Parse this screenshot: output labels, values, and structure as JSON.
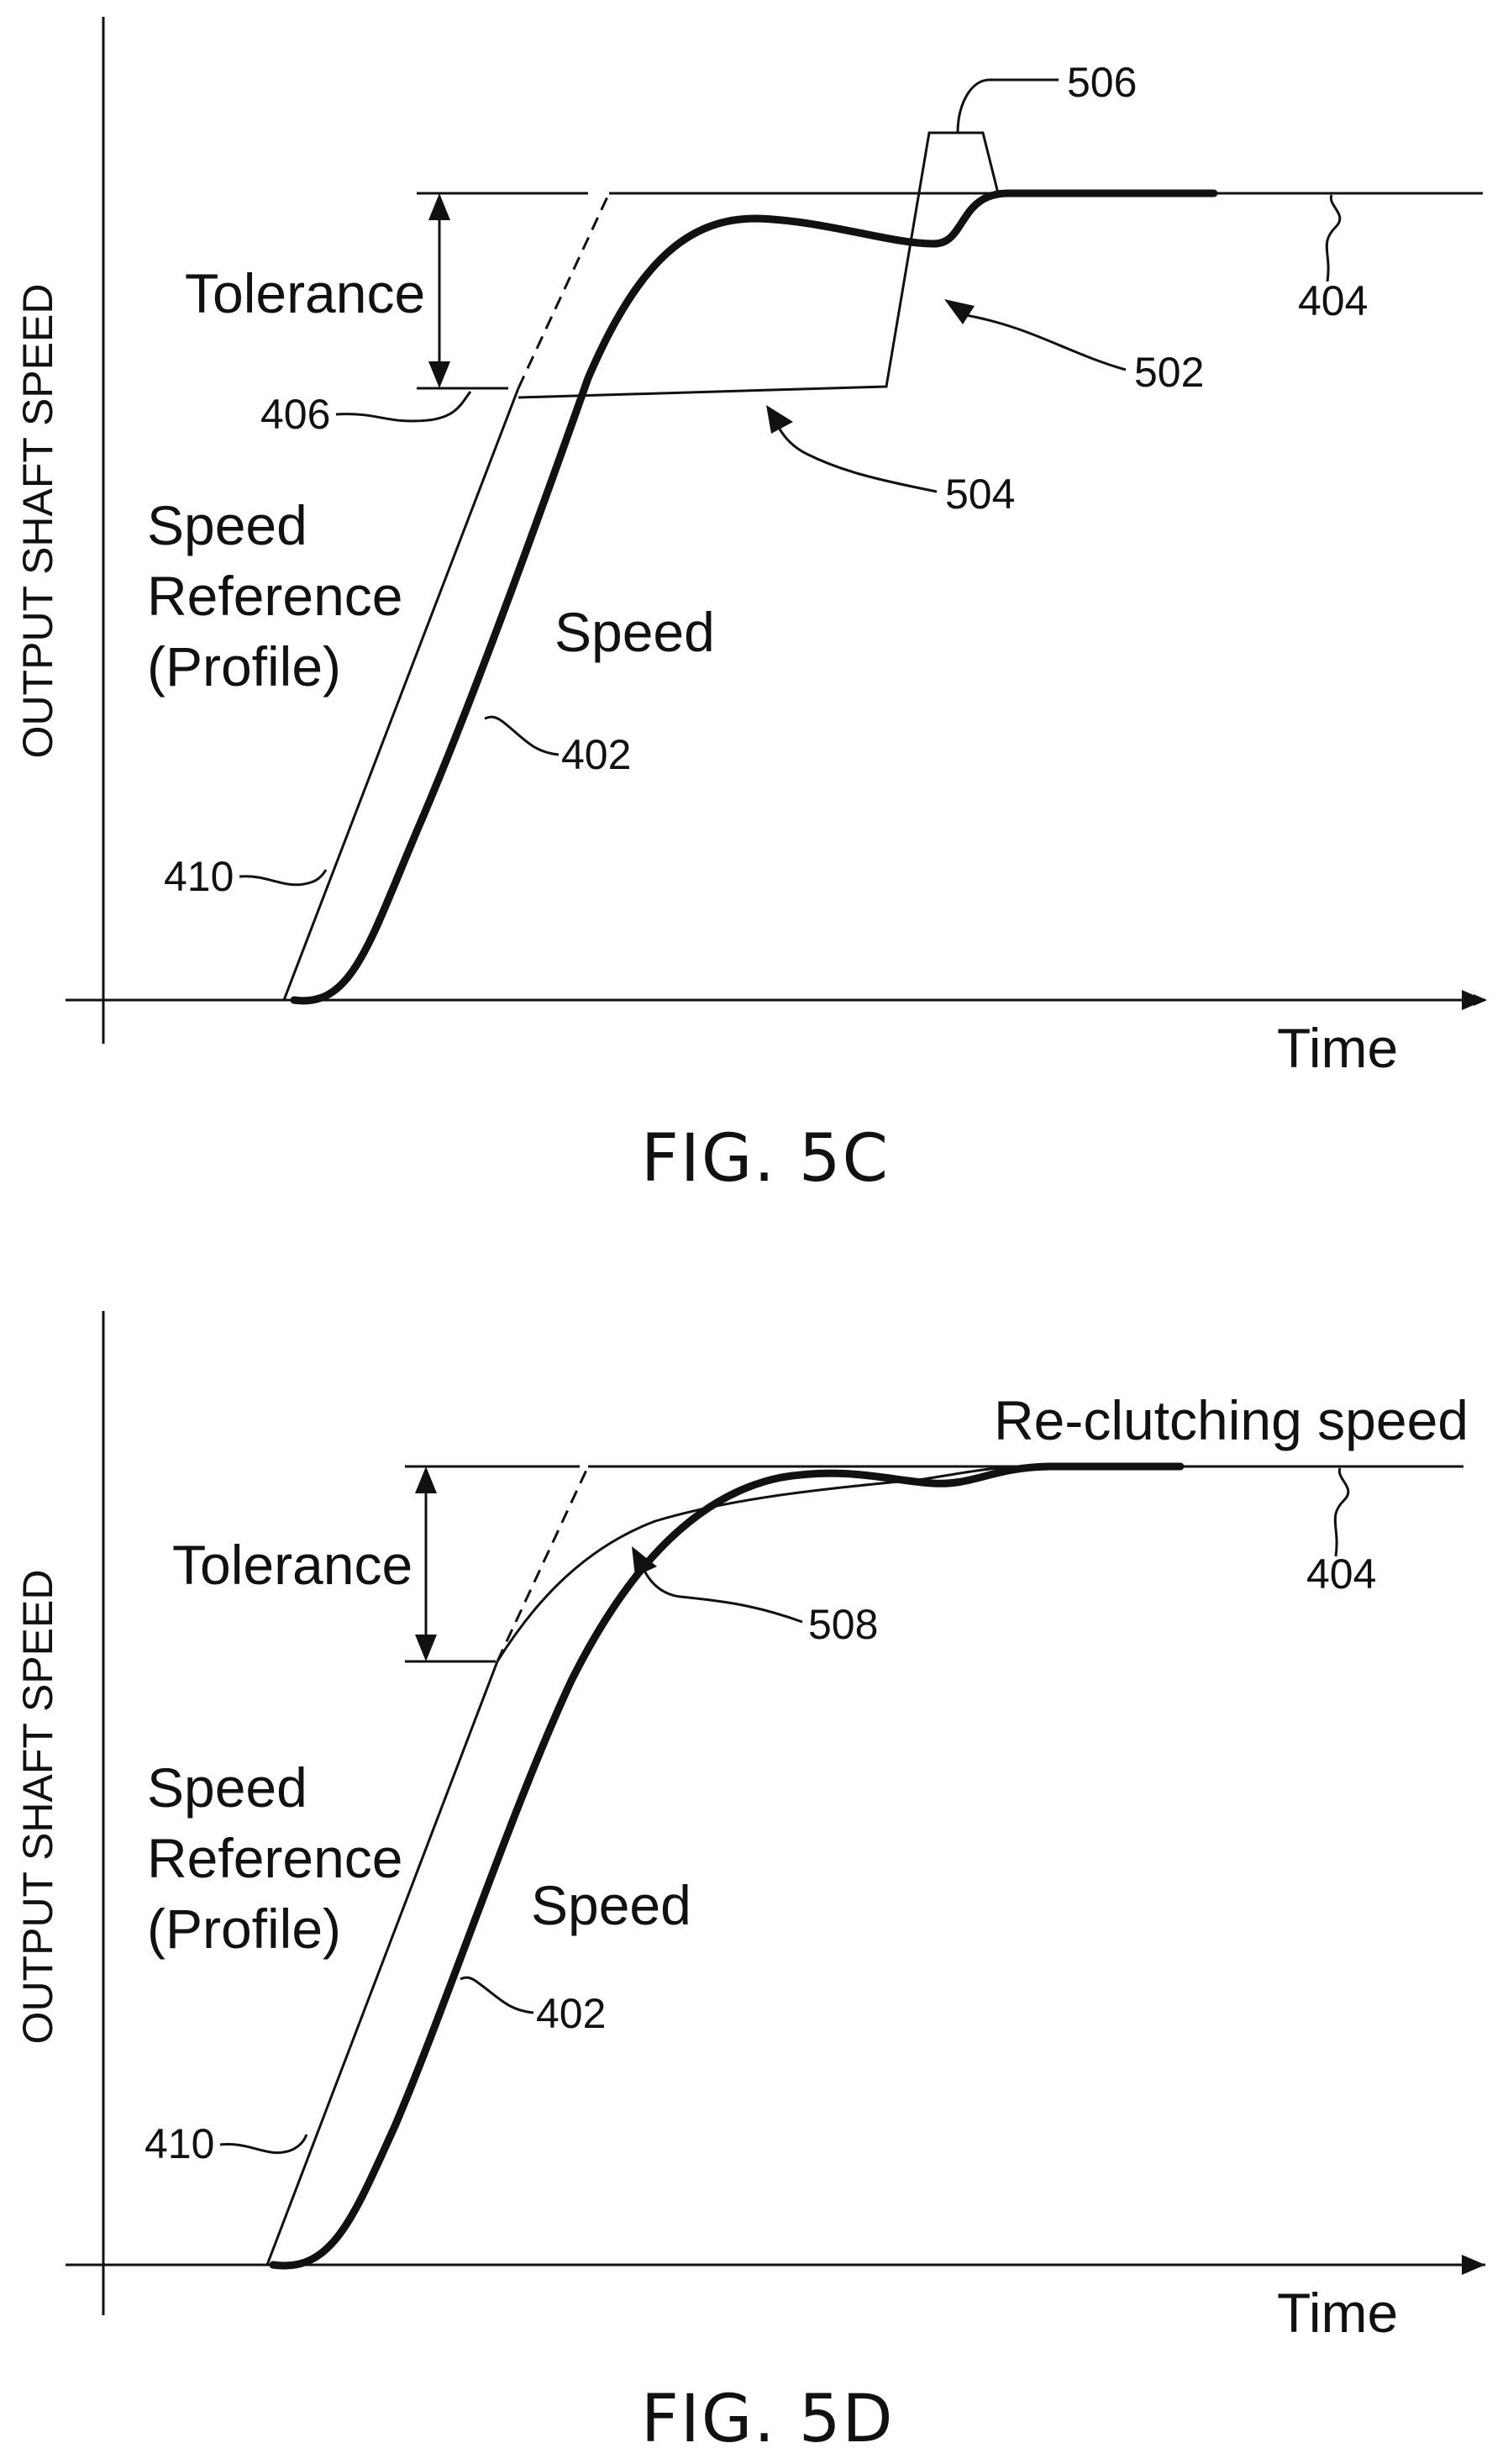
{
  "figure_c": {
    "caption": "FIG. 5C",
    "y_axis_label": "OUTPUT SHAFT SPEED",
    "x_axis_label": "Time",
    "tolerance_label": "Tolerance",
    "reference_label_line1": "Speed",
    "reference_label_line2": "Reference",
    "reference_label_line3": "(Profile)",
    "speed_label": "Speed",
    "refs": {
      "r506": "506",
      "r404": "404",
      "r502": "502",
      "r406": "406",
      "r504": "504",
      "r402": "402",
      "r410": "410"
    }
  },
  "figure_d": {
    "caption": "FIG. 5D",
    "y_axis_label": "OUTPUT SHAFT SPEED",
    "x_axis_label": "Time",
    "tolerance_label": "Tolerance",
    "reference_label_line1": "Speed",
    "reference_label_line2": "Reference",
    "reference_label_line3": "(Profile)",
    "speed_label": "Speed",
    "reclutching_label": "Re-clutching speed",
    "refs": {
      "r404": "404",
      "r508": "508",
      "r402": "402",
      "r410": "410"
    }
  }
}
